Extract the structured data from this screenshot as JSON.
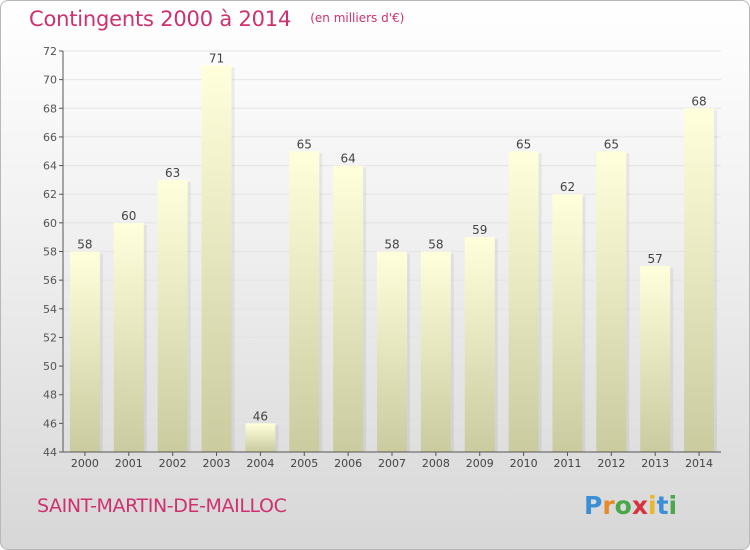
{
  "header": {
    "title": "Contingents 2000 à 2014",
    "subtitle": "(en milliers d'€)"
  },
  "footer": {
    "commune": "SAINT-MARTIN-DE-MAILLOC",
    "logo_letters": [
      "P",
      "r",
      "o",
      "x",
      "i",
      "t",
      "i"
    ]
  },
  "colors": {
    "accent": "#cf3170",
    "bar_top": "#ffffdc",
    "bar_bottom": "#cbcba0",
    "axis": "#555555"
  },
  "chart_data": {
    "type": "bar",
    "title": "Contingents 2000 à 2014",
    "subtitle": "(en milliers d'€)",
    "categories": [
      "2000",
      "2001",
      "2002",
      "2003",
      "2004",
      "2005",
      "2006",
      "2007",
      "2008",
      "2009",
      "2010",
      "2011",
      "2012",
      "2013",
      "2014"
    ],
    "values": [
      58,
      60,
      63,
      71,
      46,
      65,
      64,
      58,
      58,
      59,
      65,
      62,
      65,
      57,
      68
    ],
    "ylim": [
      44,
      72
    ],
    "yticks": [
      44,
      46,
      48,
      50,
      52,
      54,
      56,
      58,
      60,
      62,
      64,
      66,
      68,
      70,
      72
    ],
    "grid": true,
    "xlabel": "",
    "ylabel": ""
  }
}
